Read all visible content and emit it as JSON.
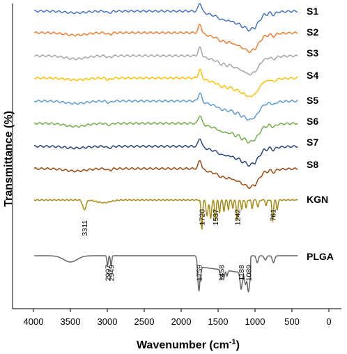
{
  "chart_data": {
    "type": "line",
    "xlabel": "Wavenumber (cm⁻¹)",
    "ylabel": "Transmittance (%)",
    "xlim": [
      4000,
      0
    ],
    "xticks": [
      4000,
      3500,
      3000,
      2500,
      2000,
      1500,
      1000,
      500,
      0
    ],
    "grid": false,
    "series": [
      {
        "name": "S1",
        "color": "#4472C4"
      },
      {
        "name": "S2",
        "color": "#ED7D31"
      },
      {
        "name": "S3",
        "color": "#A5A5A5"
      },
      {
        "name": "S4",
        "color": "#FFC000"
      },
      {
        "name": "S5",
        "color": "#5B9BD5"
      },
      {
        "name": "S6",
        "color": "#70AD47"
      },
      {
        "name": "S7",
        "color": "#264478"
      },
      {
        "name": "S8",
        "color": "#9E480E"
      },
      {
        "name": "KGN",
        "color": "#A88A12"
      },
      {
        "name": "PLGA",
        "color": "#666666"
      }
    ],
    "annotations": [
      {
        "series": "KGN",
        "x": 3311,
        "label": "3311"
      },
      {
        "series": "KGN",
        "x": 1720,
        "label": "1720"
      },
      {
        "series": "KGN",
        "x": 1537,
        "label": "1537"
      },
      {
        "series": "KGN",
        "x": 1242,
        "label": "1242"
      },
      {
        "series": "KGN",
        "x": 761,
        "label": "761"
      },
      {
        "series": "PLGA",
        "x": 2997,
        "label": "2997"
      },
      {
        "series": "PLGA",
        "x": 2949,
        "label": "2949"
      },
      {
        "series": "PLGA",
        "x": 1759,
        "label": "1759"
      },
      {
        "series": "PLGA",
        "x": 1458,
        "label": "1458"
      },
      {
        "series": "PLGA",
        "x": 1188,
        "label": "1188"
      },
      {
        "series": "PLGA",
        "x": 1089,
        "label": "1089"
      }
    ]
  }
}
